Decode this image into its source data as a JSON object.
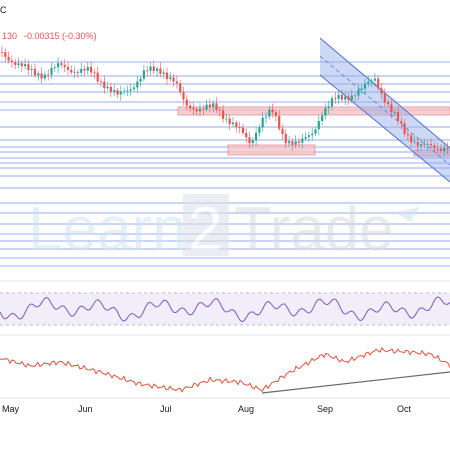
{
  "header": {
    "symbol_tail": "C",
    "price_tail": "130",
    "change_text": "-0.00315 (-0.30%)"
  },
  "watermark": {
    "left": "Learn",
    "number": "2",
    "right": "Trade"
  },
  "colors": {
    "up": "#26a69a",
    "down": "#ef5350",
    "level_line": "#5b7fde",
    "zone": "#f6c2c6",
    "zone_border": "#e8767f",
    "channel": "#8fa8ec",
    "rsi": "#7e57c2",
    "rsi_band": "#ede7f6",
    "indicator": "#e0533d",
    "trendline": "#6b6b6b",
    "change": "#ef5350"
  },
  "chart_data": [
    {
      "type": "candlestick",
      "title": "",
      "x_labels": [
        "May",
        "Jun",
        "Jul",
        "Aug",
        "Sep",
        "Oct"
      ],
      "trend_channel": "descending",
      "levels": 22,
      "ohlc_pattern": [
        [
          1.001,
          1.004,
          0.997,
          0.998
        ],
        [
          0.998,
          1.0,
          0.994,
          0.996
        ],
        [
          0.996,
          0.999,
          0.99,
          0.992
        ],
        [
          0.992,
          0.995,
          0.986,
          0.987
        ],
        [
          0.987,
          0.993,
          0.985,
          0.991
        ],
        [
          0.991,
          0.996,
          0.988,
          0.994
        ],
        [
          0.994,
          0.998,
          0.99,
          0.992
        ],
        [
          0.992,
          0.994,
          0.984,
          0.986
        ],
        [
          0.986,
          0.989,
          0.978,
          0.98
        ],
        [
          0.98,
          0.984,
          0.972,
          0.975
        ],
        [
          0.975,
          0.982,
          0.971,
          0.979
        ],
        [
          0.979,
          0.99,
          0.976,
          0.987
        ],
        [
          0.987,
          0.993,
          0.983,
          0.99
        ],
        [
          0.99,
          0.992,
          0.98,
          0.982
        ],
        [
          0.982,
          0.985,
          0.965,
          0.968
        ],
        [
          0.968,
          0.972,
          0.958,
          0.962
        ],
        [
          0.962,
          0.966,
          0.952,
          0.955
        ],
        [
          0.955,
          0.96,
          0.946,
          0.95
        ],
        [
          0.95,
          0.957,
          0.946,
          0.954
        ],
        [
          0.954,
          0.962,
          0.951,
          0.96
        ],
        [
          0.96,
          0.968,
          0.957,
          0.966
        ],
        [
          0.966,
          0.97,
          0.957,
          0.959
        ],
        [
          0.959,
          0.962,
          0.951,
          0.954
        ],
        [
          0.954,
          0.958,
          0.947,
          0.95
        ]
      ]
    },
    {
      "type": "line",
      "title": "",
      "indicator": "oscillator",
      "band": "dashed"
    },
    {
      "type": "line",
      "title": "",
      "indicator": "momentum",
      "trendline": "rising"
    }
  ]
}
